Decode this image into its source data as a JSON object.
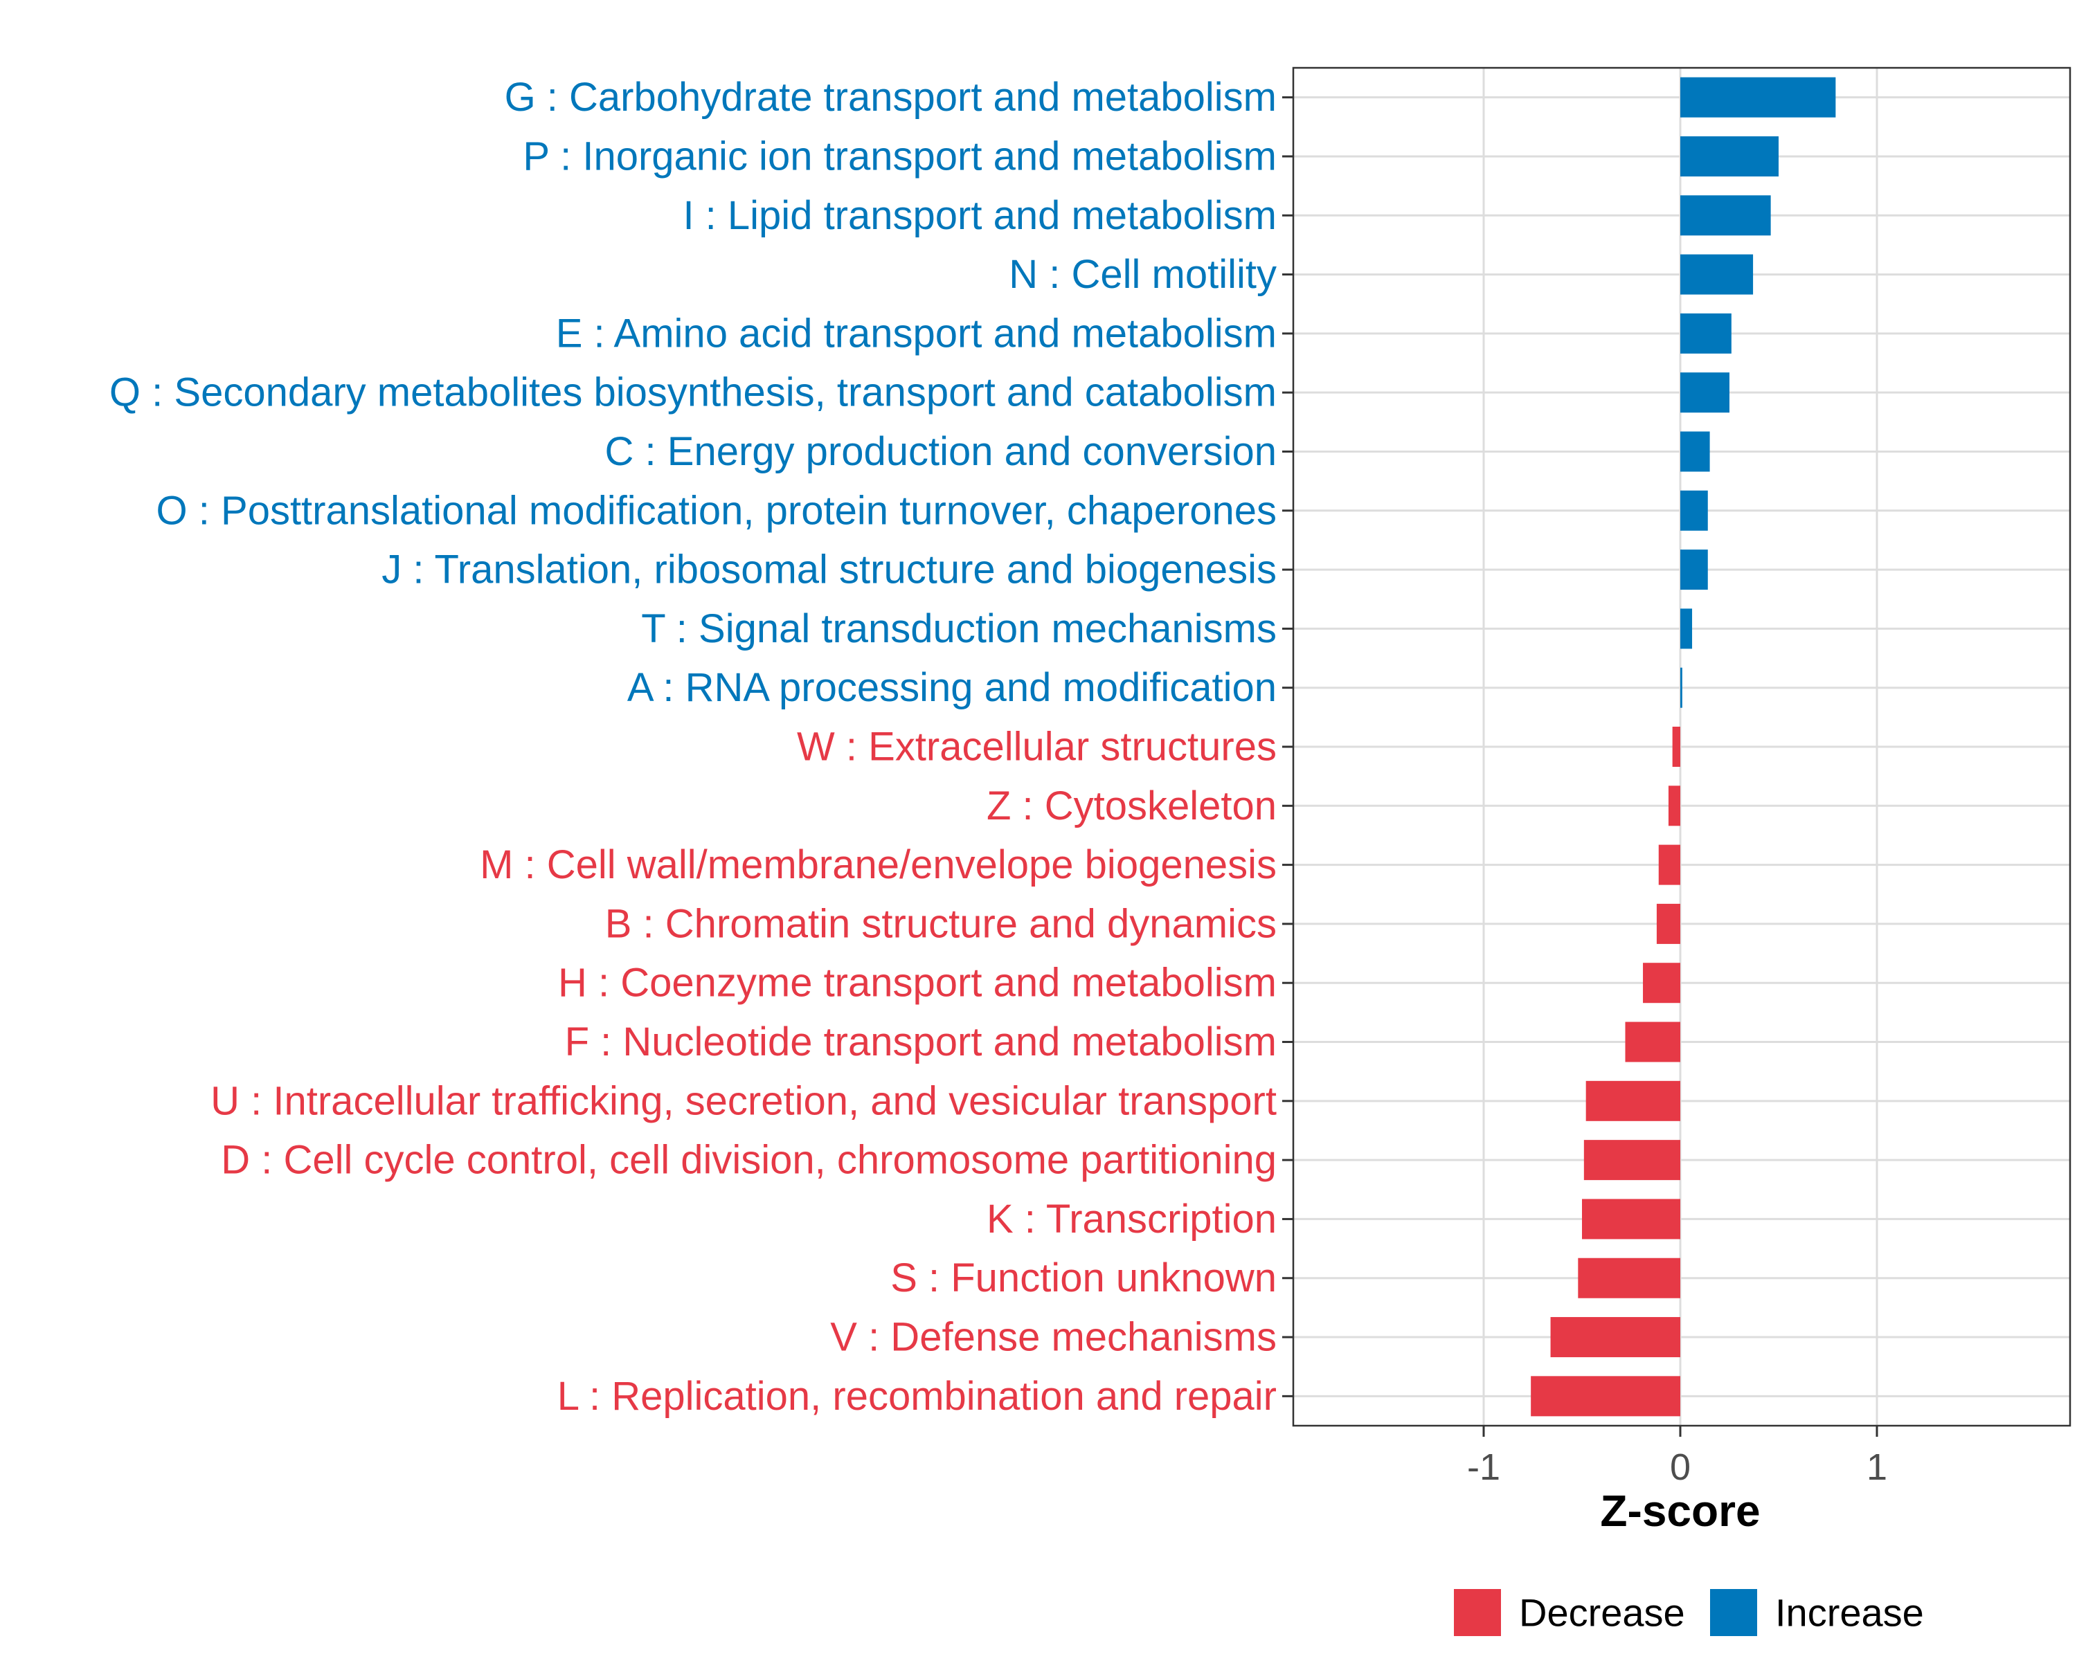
{
  "chart_data": {
    "type": "bar",
    "orientation": "horizontal",
    "title": "",
    "xlabel": "Z-score",
    "ylabel": "",
    "xlim": [
      -1.97,
      1.97
    ],
    "xticks": [
      -1,
      0,
      1
    ],
    "xtick_labels": [
      "-1",
      "0",
      "1"
    ],
    "grid": true,
    "legend_position": "bottom",
    "colors": {
      "Increase": "#0077bb",
      "Decrease": "#e63946"
    },
    "legend": [
      {
        "name": "Decrease",
        "color": "#e63946"
      },
      {
        "name": "Increase",
        "color": "#0077bb"
      }
    ],
    "categories": [
      "G : Carbohydrate transport and metabolism",
      "P : Inorganic ion transport and metabolism",
      "I : Lipid transport and metabolism",
      "N : Cell motility",
      "E : Amino acid transport and metabolism",
      "Q : Secondary metabolites biosynthesis, transport and catabolism",
      "C : Energy production and conversion",
      "O : Posttranslational modification, protein turnover, chaperones",
      "J : Translation, ribosomal structure and biogenesis",
      "T : Signal transduction mechanisms",
      "A : RNA processing and modification",
      "W : Extracellular structures",
      "Z : Cytoskeleton",
      "M : Cell wall/membrane/envelope biogenesis",
      "B : Chromatin structure and dynamics",
      "H : Coenzyme transport and metabolism",
      "F : Nucleotide transport and metabolism",
      "U : Intracellular trafficking, secretion, and vesicular transport",
      "D : Cell cycle control, cell division, chromosome partitioning",
      "K : Transcription",
      "S : Function unknown",
      "V : Defense mechanisms",
      "L : Replication, recombination and repair"
    ],
    "values": [
      0.79,
      0.5,
      0.46,
      0.37,
      0.26,
      0.25,
      0.15,
      0.14,
      0.14,
      0.06,
      0.01,
      -0.04,
      -0.06,
      -0.11,
      -0.12,
      -0.19,
      -0.28,
      -0.48,
      -0.49,
      -0.5,
      -0.52,
      -0.66,
      -0.76
    ],
    "groups": [
      "Increase",
      "Increase",
      "Increase",
      "Increase",
      "Increase",
      "Increase",
      "Increase",
      "Increase",
      "Increase",
      "Increase",
      "Increase",
      "Decrease",
      "Decrease",
      "Decrease",
      "Decrease",
      "Decrease",
      "Decrease",
      "Decrease",
      "Decrease",
      "Decrease",
      "Decrease",
      "Decrease",
      "Decrease"
    ]
  }
}
